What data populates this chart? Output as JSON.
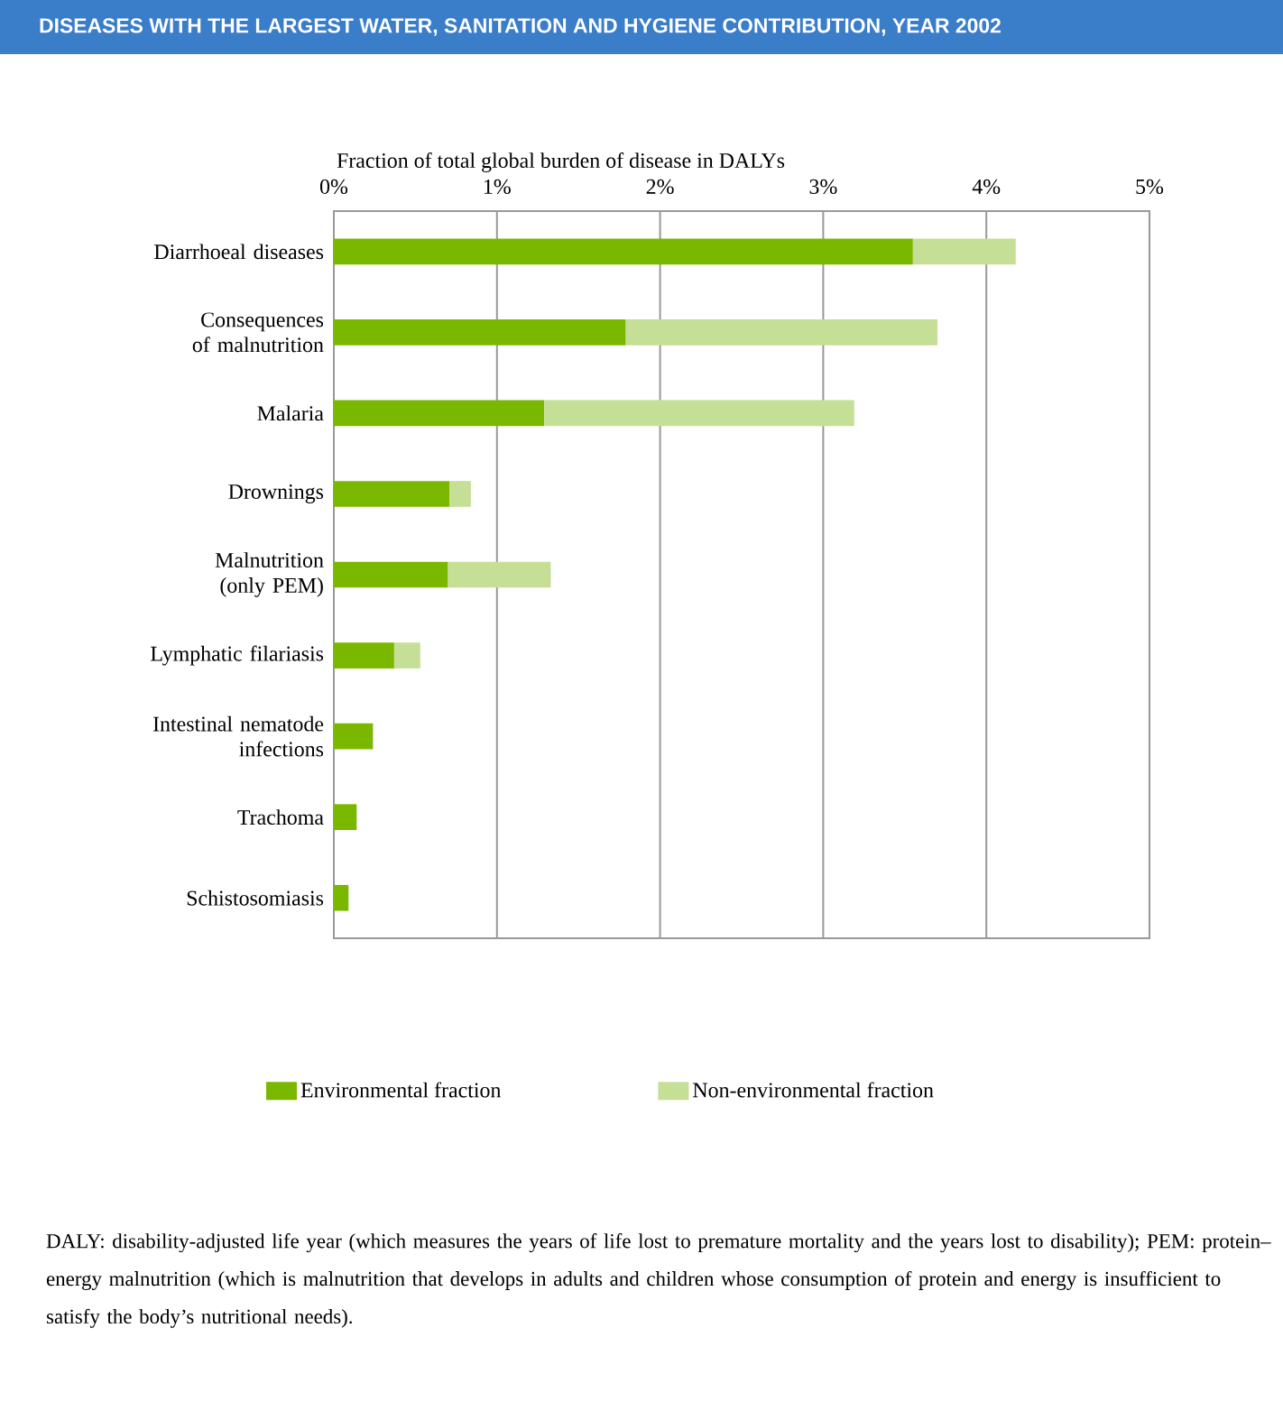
{
  "chart_data": {
    "type": "bar",
    "orientation": "horizontal",
    "stacked": true,
    "title": "DISEASES WITH THE LARGEST WATER, SANITATION AND HYGIENE CONTRIBUTION, YEAR 2002",
    "xlabel": "Fraction of total global burden of disease in DALYs",
    "categories": [
      "Diarrhoeal diseases",
      "Consequences of malnutrition",
      "Malaria",
      "Drownings",
      "Malnutrition (only PEM)",
      "Lymphatic filariasis",
      "Intestinal nematode infections",
      "Trachoma",
      "Schistosomiasis"
    ],
    "series": [
      {
        "name": "Environmental fraction",
        "color": "#7ab800",
        "values": [
          3.55,
          1.79,
          1.29,
          0.71,
          0.7,
          0.37,
          0.24,
          0.14,
          0.09
        ]
      },
      {
        "name": "Non-environmental fraction",
        "color": "#c5df96",
        "values": [
          0.63,
          1.91,
          1.9,
          0.13,
          0.63,
          0.16,
          null,
          null,
          null
        ]
      }
    ],
    "xlim": [
      0,
      5
    ],
    "xticks": [
      {
        "value": 0,
        "label": "0%"
      },
      {
        "value": 1,
        "label": "1%"
      },
      {
        "value": 2,
        "label": "2%"
      },
      {
        "value": 3,
        "label": "3%"
      },
      {
        "value": 4,
        "label": "4%"
      },
      {
        "value": 5,
        "label": "5%"
      }
    ],
    "grid": "x",
    "legend": "bottom",
    "annotations": [
      "DALY: disability-adjusted life year (which measures the years of life lost to premature mortality and the years lost to disability); PEM: protein–energy malnutrition (which is malnutrition that develops in adults and children whose consumption of protein and energy is insufficient to satisfy the body’s nutritional needs)."
    ]
  }
}
